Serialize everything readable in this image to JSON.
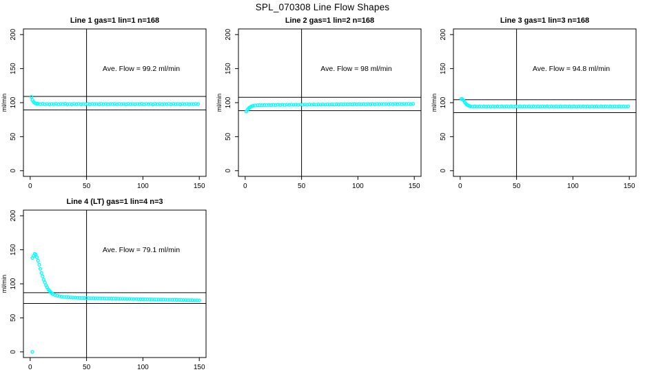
{
  "page": {
    "title": "SPL_070308  Line Flow Shapes"
  },
  "chart_data": [
    {
      "type": "scatter",
      "title": "Line 1 gas=1 lin=1 n=168",
      "annotation": "Ave. Flow = 99.2 ml/min",
      "ave_flow_ml_min": 99.2,
      "ylabel": "ml/min",
      "xlim": [
        -6,
        156
      ],
      "ylim": [
        -8.3,
        208.3
      ],
      "xticks": [
        0,
        50,
        100,
        150
      ],
      "yticks": [
        0,
        50,
        100,
        150,
        200
      ],
      "vline_x": 50,
      "hlines": [
        109.1,
        89.3
      ],
      "marker_color": "#00ffff",
      "grid": false,
      "points": [
        [
          1,
          108.5
        ],
        [
          2,
          103.8
        ],
        [
          3,
          101.2
        ],
        [
          4,
          99.6
        ],
        [
          5,
          98.7
        ],
        [
          6,
          98.2
        ],
        [
          7,
          98.4
        ],
        [
          9,
          97.7
        ],
        [
          11,
          98.3
        ],
        [
          13,
          97.6
        ],
        [
          15,
          98.1
        ],
        [
          17,
          97.5
        ],
        [
          19,
          98.0
        ],
        [
          21,
          97.7
        ],
        [
          23,
          98.2
        ],
        [
          25,
          97.6
        ],
        [
          27,
          98.1
        ],
        [
          29,
          97.8
        ],
        [
          31,
          98.3
        ],
        [
          33,
          97.6
        ],
        [
          35,
          98.0
        ],
        [
          37,
          97.5
        ],
        [
          39,
          98.2
        ],
        [
          41,
          97.8
        ],
        [
          43,
          98.1
        ],
        [
          45,
          97.6
        ],
        [
          47,
          98.0
        ],
        [
          49,
          97.7
        ],
        [
          51,
          98.2
        ],
        [
          53,
          97.6
        ],
        [
          55,
          98.1
        ],
        [
          57,
          97.8
        ],
        [
          59,
          98.0
        ],
        [
          61,
          97.5
        ],
        [
          63,
          98.2
        ],
        [
          65,
          97.7
        ],
        [
          67,
          98.1
        ],
        [
          69,
          97.6
        ],
        [
          71,
          98.0
        ],
        [
          73,
          97.8
        ],
        [
          75,
          98.2
        ],
        [
          77,
          97.6
        ],
        [
          79,
          98.1
        ],
        [
          81,
          97.7
        ],
        [
          83,
          98.0
        ],
        [
          85,
          97.5
        ],
        [
          87,
          98.2
        ],
        [
          89,
          97.8
        ],
        [
          91,
          98.1
        ],
        [
          93,
          97.6
        ],
        [
          95,
          98.0
        ],
        [
          97,
          97.7
        ],
        [
          99,
          98.2
        ],
        [
          101,
          97.6
        ],
        [
          103,
          98.1
        ],
        [
          105,
          97.8
        ],
        [
          107,
          98.0
        ],
        [
          109,
          97.5
        ],
        [
          111,
          98.2
        ],
        [
          113,
          97.7
        ],
        [
          115,
          98.1
        ],
        [
          117,
          97.6
        ],
        [
          119,
          98.0
        ],
        [
          121,
          97.8
        ],
        [
          123,
          98.2
        ],
        [
          125,
          97.6
        ],
        [
          127,
          98.1
        ],
        [
          129,
          97.7
        ],
        [
          131,
          98.0
        ],
        [
          133,
          97.5
        ],
        [
          135,
          98.2
        ],
        [
          137,
          97.8
        ],
        [
          139,
          98.1
        ],
        [
          141,
          97.6
        ],
        [
          143,
          98.0
        ],
        [
          145,
          97.7
        ],
        [
          147,
          98.2
        ],
        [
          149,
          97.8
        ]
      ]
    },
    {
      "type": "scatter",
      "title": "Line 2 gas=1 lin=2 n=168",
      "annotation": "Ave. Flow = 98 ml/min",
      "ave_flow_ml_min": 98,
      "ylabel": "ml/min",
      "xlim": [
        -6,
        156
      ],
      "ylim": [
        -8.3,
        208.3
      ],
      "xticks": [
        0,
        50,
        100,
        150
      ],
      "yticks": [
        0,
        50,
        100,
        150,
        200
      ],
      "vline_x": 50,
      "hlines": [
        107.8,
        88.2
      ],
      "marker_color": "#00ffff",
      "grid": false,
      "points": [
        [
          1,
          87.0
        ],
        [
          2,
          89.5
        ],
        [
          3,
          91.5
        ],
        [
          4,
          93.0
        ],
        [
          5,
          94.0
        ],
        [
          6,
          94.8
        ],
        [
          7,
          95.3
        ],
        [
          9,
          95.9
        ],
        [
          11,
          96.3
        ],
        [
          13,
          96.5
        ],
        [
          15,
          96.3
        ],
        [
          17,
          96.6
        ],
        [
          19,
          96.4
        ],
        [
          21,
          96.7
        ],
        [
          23,
          96.4
        ],
        [
          25,
          96.8
        ],
        [
          27,
          96.5
        ],
        [
          29,
          96.9
        ],
        [
          31,
          96.6
        ],
        [
          33,
          97.0
        ],
        [
          35,
          96.6
        ],
        [
          37,
          97.0
        ],
        [
          39,
          96.7
        ],
        [
          41,
          97.1
        ],
        [
          43,
          96.8
        ],
        [
          45,
          97.1
        ],
        [
          47,
          96.8
        ],
        [
          49,
          97.2
        ],
        [
          51,
          96.9
        ],
        [
          53,
          97.2
        ],
        [
          55,
          96.9
        ],
        [
          57,
          97.3
        ],
        [
          59,
          97.0
        ],
        [
          61,
          97.3
        ],
        [
          63,
          97.0
        ],
        [
          65,
          97.4
        ],
        [
          67,
          97.1
        ],
        [
          69,
          97.4
        ],
        [
          71,
          97.1
        ],
        [
          73,
          97.5
        ],
        [
          75,
          97.2
        ],
        [
          77,
          97.5
        ],
        [
          79,
          97.2
        ],
        [
          81,
          97.6
        ],
        [
          83,
          97.3
        ],
        [
          85,
          97.6
        ],
        [
          87,
          97.3
        ],
        [
          89,
          97.7
        ],
        [
          91,
          97.4
        ],
        [
          93,
          97.7
        ],
        [
          95,
          97.4
        ],
        [
          97,
          97.8
        ],
        [
          99,
          97.5
        ],
        [
          101,
          97.8
        ],
        [
          103,
          97.5
        ],
        [
          105,
          97.8
        ],
        [
          107,
          97.5
        ],
        [
          109,
          97.9
        ],
        [
          111,
          97.6
        ],
        [
          113,
          97.9
        ],
        [
          115,
          97.6
        ],
        [
          117,
          98.0
        ],
        [
          119,
          97.7
        ],
        [
          121,
          98.0
        ],
        [
          123,
          97.7
        ],
        [
          125,
          98.0
        ],
        [
          127,
          97.7
        ],
        [
          129,
          98.1
        ],
        [
          131,
          97.8
        ],
        [
          133,
          98.1
        ],
        [
          135,
          97.8
        ],
        [
          137,
          98.1
        ],
        [
          139,
          97.8
        ],
        [
          141,
          98.2
        ],
        [
          143,
          97.9
        ],
        [
          145,
          98.2
        ],
        [
          147,
          97.9
        ],
        [
          149,
          98.2
        ]
      ]
    },
    {
      "type": "scatter",
      "title": "Line 3 gas=1 lin=3 n=168",
      "annotation": "Ave. Flow = 94.8 ml/min",
      "ave_flow_ml_min": 94.8,
      "ylabel": "ml/min",
      "xlim": [
        -6,
        156
      ],
      "ylim": [
        -8.3,
        208.3
      ],
      "xticks": [
        0,
        50,
        100,
        150
      ],
      "yticks": [
        0,
        50,
        100,
        150,
        200
      ],
      "vline_x": 50,
      "hlines": [
        104.3,
        85.3
      ],
      "marker_color": "#00ffff",
      "grid": false,
      "points": [
        [
          1,
          105.5
        ],
        [
          2,
          105.2
        ],
        [
          3,
          103.2
        ],
        [
          4,
          100.8
        ],
        [
          5,
          98.6
        ],
        [
          6,
          97.0
        ],
        [
          7,
          96.0
        ],
        [
          8,
          95.2
        ],
        [
          9,
          94.7
        ],
        [
          11,
          94.2
        ],
        [
          13,
          94.6
        ],
        [
          15,
          94.1
        ],
        [
          17,
          94.5
        ],
        [
          19,
          94.2
        ],
        [
          21,
          94.6
        ],
        [
          23,
          94.1
        ],
        [
          25,
          94.5
        ],
        [
          27,
          94.2
        ],
        [
          29,
          94.6
        ],
        [
          31,
          94.1
        ],
        [
          33,
          94.5
        ],
        [
          35,
          94.2
        ],
        [
          37,
          94.6
        ],
        [
          39,
          94.1
        ],
        [
          41,
          94.5
        ],
        [
          43,
          94.2
        ],
        [
          45,
          94.6
        ],
        [
          47,
          94.1
        ],
        [
          49,
          94.5
        ],
        [
          51,
          94.2
        ],
        [
          53,
          94.6
        ],
        [
          55,
          94.1
        ],
        [
          57,
          94.5
        ],
        [
          59,
          94.2
        ],
        [
          61,
          94.6
        ],
        [
          63,
          94.1
        ],
        [
          65,
          94.5
        ],
        [
          67,
          94.2
        ],
        [
          69,
          94.6
        ],
        [
          71,
          94.1
        ],
        [
          73,
          94.5
        ],
        [
          75,
          94.2
        ],
        [
          77,
          94.6
        ],
        [
          79,
          94.1
        ],
        [
          81,
          94.5
        ],
        [
          83,
          94.2
        ],
        [
          85,
          94.6
        ],
        [
          87,
          94.1
        ],
        [
          89,
          94.5
        ],
        [
          91,
          94.2
        ],
        [
          93,
          94.6
        ],
        [
          95,
          94.1
        ],
        [
          97,
          94.5
        ],
        [
          99,
          94.2
        ],
        [
          101,
          94.6
        ],
        [
          103,
          94.1
        ],
        [
          105,
          94.5
        ],
        [
          107,
          94.2
        ],
        [
          109,
          94.6
        ],
        [
          111,
          94.1
        ],
        [
          113,
          94.5
        ],
        [
          115,
          94.2
        ],
        [
          117,
          94.6
        ],
        [
          119,
          94.1
        ],
        [
          121,
          94.5
        ],
        [
          123,
          94.2
        ],
        [
          125,
          94.6
        ],
        [
          127,
          94.1
        ],
        [
          129,
          94.5
        ],
        [
          131,
          94.2
        ],
        [
          133,
          94.6
        ],
        [
          135,
          94.1
        ],
        [
          137,
          94.5
        ],
        [
          139,
          94.2
        ],
        [
          141,
          94.6
        ],
        [
          143,
          94.1
        ],
        [
          145,
          94.5
        ],
        [
          147,
          94.2
        ],
        [
          149,
          94.5
        ]
      ]
    },
    {
      "type": "scatter",
      "title": "Line 4 (LT) gas=1 lin=4 n=3",
      "annotation": "Ave. Flow = 79.1 ml/min",
      "ave_flow_ml_min": 79.1,
      "ylabel": "ml/min",
      "xlim": [
        -6,
        156
      ],
      "ylim": [
        -8.3,
        208.3
      ],
      "xticks": [
        0,
        50,
        100,
        150
      ],
      "yticks": [
        0,
        50,
        100,
        150,
        200
      ],
      "vline_x": 50,
      "hlines": [
        87.0,
        71.2
      ],
      "marker_color": "#00ffff",
      "grid": false,
      "points": [
        [
          2,
          0
        ],
        [
          2,
          138
        ],
        [
          3,
          141
        ],
        [
          4,
          144
        ],
        [
          5,
          143
        ],
        [
          6,
          139
        ],
        [
          7,
          134
        ],
        [
          8,
          128
        ],
        [
          9,
          122
        ],
        [
          10,
          116
        ],
        [
          11,
          111
        ],
        [
          12,
          106
        ],
        [
          13,
          102
        ],
        [
          14,
          98
        ],
        [
          15,
          95
        ],
        [
          16,
          92
        ],
        [
          17,
          90
        ],
        [
          18,
          88
        ],
        [
          19,
          86.5
        ],
        [
          20,
          85
        ],
        [
          22,
          83.5
        ],
        [
          24,
          82.5
        ],
        [
          26,
          81.8
        ],
        [
          28,
          81.2
        ],
        [
          30,
          80.8
        ],
        [
          32,
          80.5
        ],
        [
          34,
          80.2
        ],
        [
          36,
          80.0
        ],
        [
          38,
          79.8
        ],
        [
          40,
          79.7
        ],
        [
          42,
          79.5
        ],
        [
          44,
          79.4
        ],
        [
          46,
          79.3
        ],
        [
          48,
          79.2
        ],
        [
          50,
          79.1
        ],
        [
          52,
          79.0
        ],
        [
          54,
          78.9
        ],
        [
          56,
          78.8
        ],
        [
          58,
          78.8
        ],
        [
          60,
          78.7
        ],
        [
          62,
          78.6
        ],
        [
          64,
          78.6
        ],
        [
          66,
          78.5
        ],
        [
          68,
          78.4
        ],
        [
          70,
          78.4
        ],
        [
          72,
          78.3
        ],
        [
          74,
          78.2
        ],
        [
          76,
          78.2
        ],
        [
          78,
          78.1
        ],
        [
          80,
          78.0
        ],
        [
          82,
          78.0
        ],
        [
          84,
          77.9
        ],
        [
          86,
          77.8
        ],
        [
          88,
          77.8
        ],
        [
          90,
          77.7
        ],
        [
          92,
          77.6
        ],
        [
          94,
          77.6
        ],
        [
          96,
          77.5
        ],
        [
          98,
          77.4
        ],
        [
          100,
          77.4
        ],
        [
          102,
          77.3
        ],
        [
          104,
          77.2
        ],
        [
          106,
          77.2
        ],
        [
          108,
          77.1
        ],
        [
          110,
          77.0
        ],
        [
          112,
          77.0
        ],
        [
          114,
          76.9
        ],
        [
          116,
          76.8
        ],
        [
          118,
          76.8
        ],
        [
          120,
          76.7
        ],
        [
          122,
          76.6
        ],
        [
          124,
          76.6
        ],
        [
          126,
          76.5
        ],
        [
          128,
          76.4
        ],
        [
          130,
          76.4
        ],
        [
          132,
          76.3
        ],
        [
          134,
          76.2
        ],
        [
          136,
          76.2
        ],
        [
          138,
          76.1
        ],
        [
          140,
          76.0
        ],
        [
          142,
          76.0
        ],
        [
          144,
          75.9
        ],
        [
          146,
          75.8
        ],
        [
          148,
          75.8
        ],
        [
          150,
          75.7
        ]
      ]
    }
  ]
}
